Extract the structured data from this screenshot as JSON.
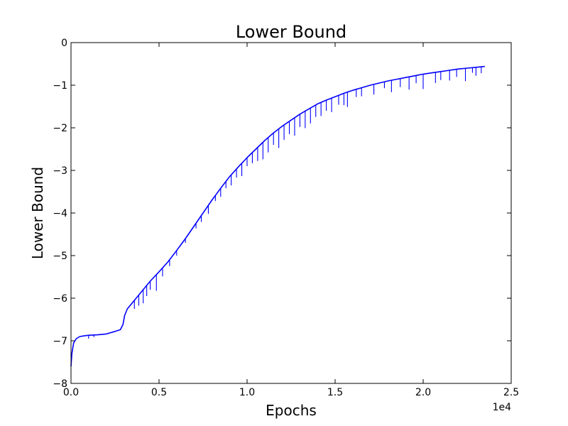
{
  "chart_data": {
    "type": "line",
    "title": "Lower Bound",
    "xlabel": "Epochs",
    "ylabel": "Lower Bound",
    "x_offset_label": "1e4",
    "xlim": [
      0,
      25000
    ],
    "ylim": [
      -8,
      0
    ],
    "grid": false,
    "x_ticks": [
      0,
      5000,
      10000,
      15000,
      20000,
      25000
    ],
    "x_tick_labels": [
      "0.0",
      "0.5",
      "1.0",
      "1.5",
      "2.0",
      "2.5"
    ],
    "y_ticks": [
      0,
      -1,
      -2,
      -3,
      -4,
      -5,
      -6,
      -7,
      -8
    ],
    "y_tick_labels": [
      "0",
      "−1",
      "−2",
      "−3",
      "−4",
      "−5",
      "−6",
      "−7",
      "−8"
    ],
    "series": [
      {
        "color": "#0000ff",
        "x": [
          0,
          50,
          150,
          300,
          500,
          800,
          1000,
          1500,
          2000,
          2500,
          2800,
          2950,
          3050,
          3200,
          3500,
          4000,
          4500,
          5000,
          5500,
          6000,
          6500,
          7000,
          7500,
          8000,
          8500,
          9000,
          9500,
          10000,
          10500,
          11000,
          11500,
          12000,
          12500,
          13000,
          13500,
          14000,
          14500,
          15000,
          15500,
          16000,
          16500,
          17000,
          17500,
          18000,
          18500,
          19000,
          19500,
          20000,
          20500,
          21000,
          21500,
          22000,
          22500,
          23000,
          23500
        ],
        "y": [
          -7.6,
          -7.3,
          -7.05,
          -6.95,
          -6.9,
          -6.88,
          -6.87,
          -6.86,
          -6.84,
          -6.78,
          -6.74,
          -6.62,
          -6.4,
          -6.25,
          -6.1,
          -5.85,
          -5.6,
          -5.38,
          -5.15,
          -4.88,
          -4.6,
          -4.3,
          -4.0,
          -3.7,
          -3.42,
          -3.15,
          -2.92,
          -2.7,
          -2.5,
          -2.3,
          -2.12,
          -1.96,
          -1.82,
          -1.68,
          -1.56,
          -1.44,
          -1.35,
          -1.27,
          -1.19,
          -1.12,
          -1.06,
          -1.0,
          -0.95,
          -0.9,
          -0.86,
          -0.82,
          -0.78,
          -0.74,
          -0.71,
          -0.68,
          -0.65,
          -0.62,
          -0.6,
          -0.58,
          -0.56
        ]
      }
    ],
    "dips": [
      [
        1000,
        0.08
      ],
      [
        1300,
        0.05
      ],
      [
        3600,
        0.2
      ],
      [
        3850,
        0.25
      ],
      [
        4100,
        0.32
      ],
      [
        4300,
        0.25
      ],
      [
        4500,
        0.2
      ],
      [
        4850,
        0.38
      ],
      [
        5200,
        0.2
      ],
      [
        5600,
        0.15
      ],
      [
        6000,
        0.12
      ],
      [
        6500,
        0.1
      ],
      [
        7100,
        0.12
      ],
      [
        7400,
        0.15
      ],
      [
        7800,
        0.2
      ],
      [
        8200,
        0.13
      ],
      [
        8500,
        0.2
      ],
      [
        8800,
        0.16
      ],
      [
        9100,
        0.25
      ],
      [
        9400,
        0.2
      ],
      [
        9700,
        0.3
      ],
      [
        10000,
        0.2
      ],
      [
        10300,
        0.25
      ],
      [
        10600,
        0.32
      ],
      [
        10900,
        0.4
      ],
      [
        11200,
        0.35
      ],
      [
        11500,
        0.28
      ],
      [
        11800,
        0.45
      ],
      [
        12100,
        0.35
      ],
      [
        12400,
        0.3
      ],
      [
        12700,
        0.42
      ],
      [
        13000,
        0.3
      ],
      [
        13300,
        0.4
      ],
      [
        13600,
        0.36
      ],
      [
        13900,
        0.28
      ],
      [
        14200,
        0.32
      ],
      [
        14500,
        0.25
      ],
      [
        14800,
        0.33
      ],
      [
        15200,
        0.22
      ],
      [
        15500,
        0.28
      ],
      [
        15700,
        0.35
      ],
      [
        16200,
        0.18
      ],
      [
        16500,
        0.2
      ],
      [
        17200,
        0.24
      ],
      [
        17800,
        0.15
      ],
      [
        18200,
        0.28
      ],
      [
        18700,
        0.2
      ],
      [
        19200,
        0.3
      ],
      [
        19600,
        0.18
      ],
      [
        20000,
        0.35
      ],
      [
        20700,
        0.25
      ],
      [
        21000,
        0.2
      ],
      [
        21500,
        0.24
      ],
      [
        21900,
        0.18
      ],
      [
        22400,
        0.3
      ],
      [
        22800,
        0.12
      ],
      [
        23000,
        0.2
      ],
      [
        23300,
        0.15
      ]
    ]
  }
}
